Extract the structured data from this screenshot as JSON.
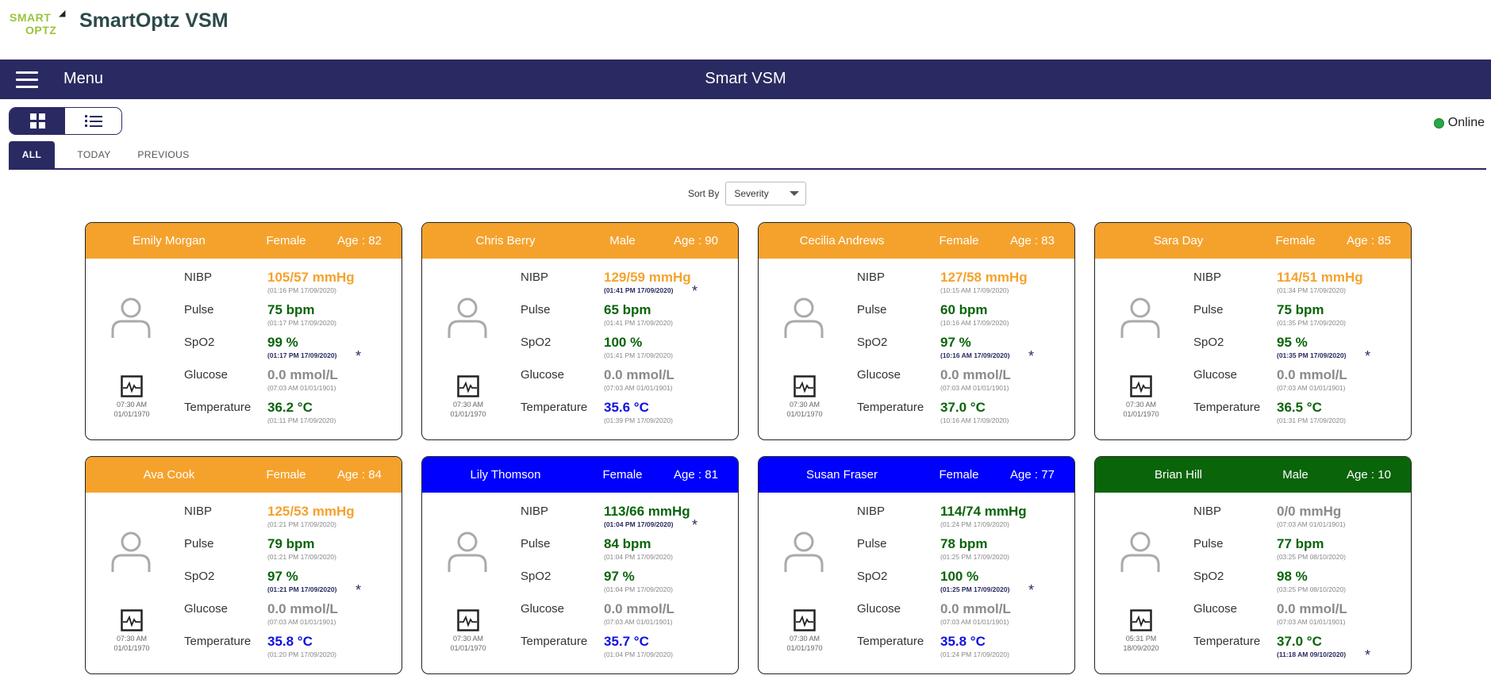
{
  "app": {
    "logo_line1": "SMART",
    "logo_line2": "OPTZ",
    "title": "SmartOptz VSM"
  },
  "nav": {
    "menu_label": "Menu",
    "page_title": "Smart VSM"
  },
  "view_toggle": {
    "selected": "grid"
  },
  "status": {
    "label": "Online",
    "color": "#28a745"
  },
  "tabs": [
    {
      "label": "ALL",
      "active": true
    },
    {
      "label": "TODAY",
      "active": false
    },
    {
      "label": "PREVIOUS",
      "active": false
    }
  ],
  "sort": {
    "label": "Sort By",
    "value": "Severity"
  },
  "colors": {
    "nav": "#2a2a62",
    "severity_orange": "#f5a22d",
    "severity_blue": "#0000ff",
    "severity_green": "#0a640a",
    "value_orange": "#f5a22d",
    "value_green": "#0a640a",
    "value_blue": "#1010e0",
    "value_grey": "#8a8a8a"
  },
  "vital_labels": {
    "nibp": "NIBP",
    "pulse": "Pulse",
    "spo2": "SpO2",
    "glucose": "Glucose",
    "temperature": "Temperature"
  },
  "patients": [
    {
      "name": "Emily Morgan",
      "gender": "Female",
      "age": "Age : 82",
      "header_color": "orange",
      "ecg_time": "07:30 AM",
      "ecg_date": "01/01/1970",
      "nibp": {
        "value": "105/57 mmHg",
        "time": "(01:16 PM 17/09/2020)",
        "color": "orange",
        "starred": false
      },
      "pulse": {
        "value": "75 bpm",
        "time": "(01:17 PM 17/09/2020)",
        "color": "green",
        "starred": false
      },
      "spo2": {
        "value": "99 %",
        "time": "(01:17 PM 17/09/2020)",
        "color": "green",
        "starred": true
      },
      "glucose": {
        "value": "0.0 mmol/L",
        "time": "(07:03 AM 01/01/1901)",
        "color": "grey",
        "starred": false
      },
      "temperature": {
        "value": "36.2 °C",
        "time": "(01:11 PM 17/09/2020)",
        "color": "green",
        "starred": false
      }
    },
    {
      "name": "Chris Berry",
      "gender": "Male",
      "age": "Age : 90",
      "header_color": "orange",
      "ecg_time": "07:30 AM",
      "ecg_date": "01/01/1970",
      "nibp": {
        "value": "129/59 mmHg",
        "time": "(01:41 PM 17/09/2020)",
        "color": "orange",
        "starred": true
      },
      "pulse": {
        "value": "65 bpm",
        "time": "(01:41 PM 17/09/2020)",
        "color": "green",
        "starred": false
      },
      "spo2": {
        "value": "100 %",
        "time": "(01:41 PM 17/09/2020)",
        "color": "green",
        "starred": false
      },
      "glucose": {
        "value": "0.0 mmol/L",
        "time": "(07:03 AM 01/01/1901)",
        "color": "grey",
        "starred": false
      },
      "temperature": {
        "value": "35.6 °C",
        "time": "(01:39 PM 17/09/2020)",
        "color": "blue",
        "starred": false
      }
    },
    {
      "name": "Cecilia Andrews",
      "gender": "Female",
      "age": "Age : 83",
      "header_color": "orange",
      "ecg_time": "07:30 AM",
      "ecg_date": "01/01/1970",
      "nibp": {
        "value": "127/58 mmHg",
        "time": "(10:15 AM 17/09/2020)",
        "color": "orange",
        "starred": false
      },
      "pulse": {
        "value": "60 bpm",
        "time": "(10:16 AM 17/09/2020)",
        "color": "green",
        "starred": false
      },
      "spo2": {
        "value": "97 %",
        "time": "(10:16 AM 17/09/2020)",
        "color": "green",
        "starred": true
      },
      "glucose": {
        "value": "0.0 mmol/L",
        "time": "(07:03 AM 01/01/1901)",
        "color": "grey",
        "starred": false
      },
      "temperature": {
        "value": "37.0 °C",
        "time": "(10:16 AM 17/09/2020)",
        "color": "green",
        "starred": false
      }
    },
    {
      "name": "Sara Day",
      "gender": "Female",
      "age": "Age : 85",
      "header_color": "orange",
      "ecg_time": "07:30 AM",
      "ecg_date": "01/01/1970",
      "nibp": {
        "value": "114/51 mmHg",
        "time": "(01:34 PM 17/09/2020)",
        "color": "orange",
        "starred": false
      },
      "pulse": {
        "value": "75 bpm",
        "time": "(01:35 PM 17/09/2020)",
        "color": "green",
        "starred": false
      },
      "spo2": {
        "value": "95 %",
        "time": "(01:35 PM 17/09/2020)",
        "color": "green",
        "starred": true
      },
      "glucose": {
        "value": "0.0 mmol/L",
        "time": "(07:03 AM 01/01/1901)",
        "color": "grey",
        "starred": false
      },
      "temperature": {
        "value": "36.5 °C",
        "time": "(01:31 PM 17/09/2020)",
        "color": "green",
        "starred": false
      }
    },
    {
      "name": "Ava Cook",
      "gender": "Female",
      "age": "Age : 84",
      "header_color": "orange",
      "ecg_time": "07:30 AM",
      "ecg_date": "01/01/1970",
      "nibp": {
        "value": "125/53 mmHg",
        "time": "(01:21 PM 17/09/2020)",
        "color": "orange",
        "starred": false
      },
      "pulse": {
        "value": "79 bpm",
        "time": "(01:21 PM 17/09/2020)",
        "color": "green",
        "starred": false
      },
      "spo2": {
        "value": "97 %",
        "time": "(01:21 PM 17/09/2020)",
        "color": "green",
        "starred": true
      },
      "glucose": {
        "value": "0.0 mmol/L",
        "time": "(07:03 AM 01/01/1901)",
        "color": "grey",
        "starred": false
      },
      "temperature": {
        "value": "35.8 °C",
        "time": "(01:20 PM 17/09/2020)",
        "color": "blue",
        "starred": false
      }
    },
    {
      "name": "Lily Thomson",
      "gender": "Female",
      "age": "Age : 81",
      "header_color": "blue",
      "ecg_time": "07:30 AM",
      "ecg_date": "01/01/1970",
      "nibp": {
        "value": "113/66 mmHg",
        "time": "(01:04 PM 17/09/2020)",
        "color": "green",
        "starred": true
      },
      "pulse": {
        "value": "84 bpm",
        "time": "(01:04 PM 17/09/2020)",
        "color": "green",
        "starred": false
      },
      "spo2": {
        "value": "97 %",
        "time": "(01:04 PM 17/09/2020)",
        "color": "green",
        "starred": false
      },
      "glucose": {
        "value": "0.0 mmol/L",
        "time": "(07:03 AM 01/01/1901)",
        "color": "grey",
        "starred": false
      },
      "temperature": {
        "value": "35.7 °C",
        "time": "(01:04 PM 17/09/2020)",
        "color": "blue",
        "starred": false
      }
    },
    {
      "name": "Susan Fraser",
      "gender": "Female",
      "age": "Age : 77",
      "header_color": "blue",
      "ecg_time": "07:30 AM",
      "ecg_date": "01/01/1970",
      "nibp": {
        "value": "114/74 mmHg",
        "time": "(01:24 PM 17/09/2020)",
        "color": "green",
        "starred": false
      },
      "pulse": {
        "value": "78 bpm",
        "time": "(01:25 PM 17/09/2020)",
        "color": "green",
        "starred": false
      },
      "spo2": {
        "value": "100 %",
        "time": "(01:25 PM 17/09/2020)",
        "color": "green",
        "starred": true
      },
      "glucose": {
        "value": "0.0 mmol/L",
        "time": "(07:03 AM 01/01/1901)",
        "color": "grey",
        "starred": false
      },
      "temperature": {
        "value": "35.8 °C",
        "time": "(01:24 PM 17/09/2020)",
        "color": "blue",
        "starred": false
      }
    },
    {
      "name": "Brian Hill",
      "gender": "Male",
      "age": "Age : 10",
      "header_color": "green",
      "ecg_time": "05:31 PM",
      "ecg_date": "18/09/2020",
      "nibp": {
        "value": "0/0 mmHg",
        "time": "(07:03 AM 01/01/1901)",
        "color": "grey",
        "starred": false
      },
      "pulse": {
        "value": "77 bpm",
        "time": "(03:25 PM 08/10/2020)",
        "color": "green",
        "starred": false
      },
      "spo2": {
        "value": "98 %",
        "time": "(03:25 PM 08/10/2020)",
        "color": "green",
        "starred": false
      },
      "glucose": {
        "value": "0.0 mmol/L",
        "time": "(07:03 AM 01/01/1901)",
        "color": "grey",
        "starred": false
      },
      "temperature": {
        "value": "37.0 °C",
        "time": "(11:18 AM 09/10/2020)",
        "color": "green",
        "starred": true
      }
    }
  ]
}
